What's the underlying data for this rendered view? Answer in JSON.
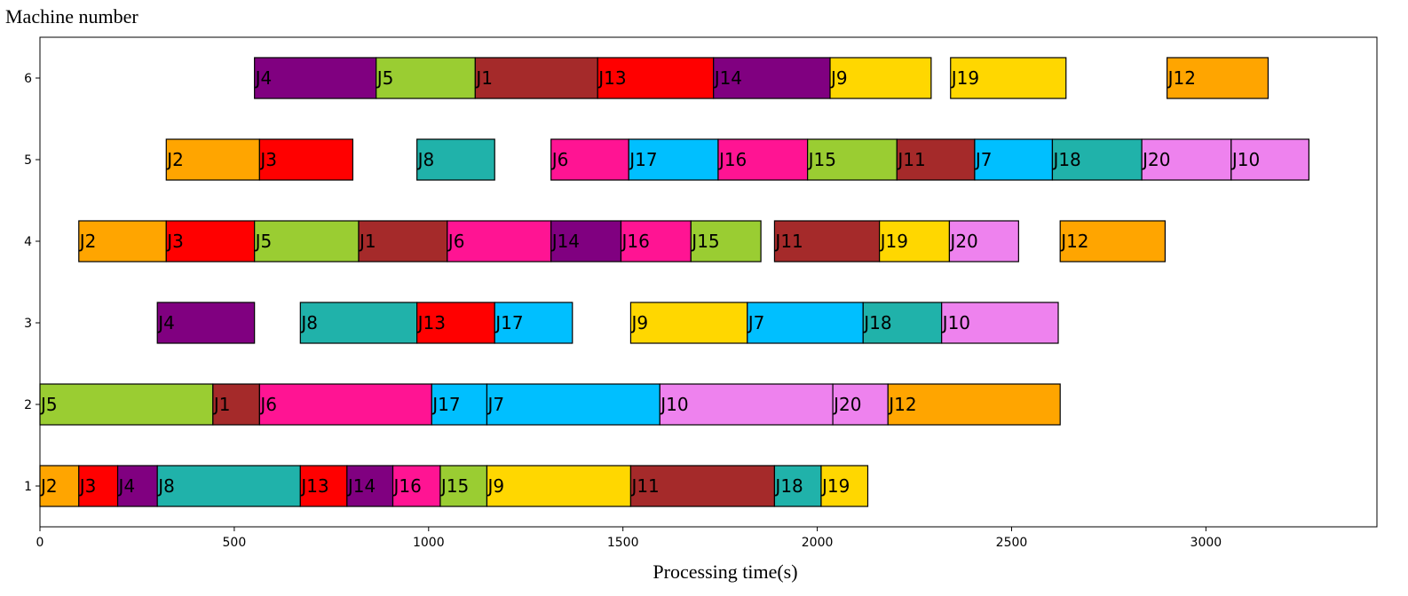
{
  "chart_data": {
    "type": "gantt",
    "ylabel": "Machine number",
    "xlabel": "Processing time(s)",
    "xlim": [
      0,
      3440
    ],
    "ylim": [
      0.5,
      6.5
    ],
    "xticks": [
      0,
      500,
      1000,
      1500,
      2000,
      2500,
      3000
    ],
    "yticks": [
      1,
      2,
      3,
      4,
      5,
      6
    ],
    "grid": false,
    "job_colors": {
      "J1": "#A52A2A",
      "J2": "#FFA500",
      "J3": "#FF0000",
      "J4": "#800080",
      "J5": "#9ACD32",
      "J6": "#FF1493",
      "J7": "#00BFFF",
      "J8": "#20B2AA",
      "J9": "#FFD700",
      "J10": "#EE82EE",
      "J11": "#A52A2A",
      "J12": "#FFA500",
      "J13": "#FF0000",
      "J14": "#800080",
      "J15": "#9ACD32",
      "J16": "#FF1493",
      "J17": "#00BFFF",
      "J18": "#20B2AA",
      "J19": "#FFD700",
      "J20": "#EE82EE"
    },
    "machines": [
      {
        "machine": 1,
        "tasks": [
          {
            "job": "J2",
            "start": 0,
            "end": 100
          },
          {
            "job": "J3",
            "start": 100,
            "end": 200
          },
          {
            "job": "J4",
            "start": 200,
            "end": 302
          },
          {
            "job": "J8",
            "start": 302,
            "end": 670
          },
          {
            "job": "J13",
            "start": 670,
            "end": 790
          },
          {
            "job": "J14",
            "start": 790,
            "end": 908
          },
          {
            "job": "J16",
            "start": 908,
            "end": 1030
          },
          {
            "job": "J15",
            "start": 1030,
            "end": 1150
          },
          {
            "job": "J9",
            "start": 1150,
            "end": 1520
          },
          {
            "job": "J11",
            "start": 1520,
            "end": 1890
          },
          {
            "job": "J18",
            "start": 1890,
            "end": 2010
          },
          {
            "job": "J19",
            "start": 2010,
            "end": 2130
          }
        ]
      },
      {
        "machine": 2,
        "tasks": [
          {
            "job": "J5",
            "start": 0,
            "end": 445
          },
          {
            "job": "J1",
            "start": 445,
            "end": 565
          },
          {
            "job": "J6",
            "start": 565,
            "end": 1008
          },
          {
            "job": "J17",
            "start": 1008,
            "end": 1150
          },
          {
            "job": "J7",
            "start": 1150,
            "end": 1595
          },
          {
            "job": "J10",
            "start": 1595,
            "end": 2040
          },
          {
            "job": "J20",
            "start": 2040,
            "end": 2182
          },
          {
            "job": "J12",
            "start": 2182,
            "end": 2625
          }
        ]
      },
      {
        "machine": 3,
        "tasks": [
          {
            "job": "J4",
            "start": 302,
            "end": 552
          },
          {
            "job": "J8",
            "start": 670,
            "end": 970
          },
          {
            "job": "J13",
            "start": 970,
            "end": 1170
          },
          {
            "job": "J17",
            "start": 1170,
            "end": 1370
          },
          {
            "job": "J9",
            "start": 1520,
            "end": 1820
          },
          {
            "job": "J7",
            "start": 1820,
            "end": 2118
          },
          {
            "job": "J18",
            "start": 2118,
            "end": 2320
          },
          {
            "job": "J10",
            "start": 2320,
            "end": 2620
          }
        ]
      },
      {
        "machine": 4,
        "tasks": [
          {
            "job": "J2",
            "start": 100,
            "end": 325
          },
          {
            "job": "J3",
            "start": 325,
            "end": 552
          },
          {
            "job": "J5",
            "start": 552,
            "end": 820
          },
          {
            "job": "J1",
            "start": 820,
            "end": 1048
          },
          {
            "job": "J6",
            "start": 1048,
            "end": 1315
          },
          {
            "job": "J14",
            "start": 1315,
            "end": 1495
          },
          {
            "job": "J16",
            "start": 1495,
            "end": 1675
          },
          {
            "job": "J15",
            "start": 1675,
            "end": 1855
          },
          {
            "job": "J11",
            "start": 1890,
            "end": 2160
          },
          {
            "job": "J19",
            "start": 2160,
            "end": 2340
          },
          {
            "job": "J20",
            "start": 2340,
            "end": 2518
          },
          {
            "job": "J12",
            "start": 2625,
            "end": 2895
          }
        ]
      },
      {
        "machine": 5,
        "tasks": [
          {
            "job": "J2",
            "start": 325,
            "end": 565
          },
          {
            "job": "J3",
            "start": 565,
            "end": 805
          },
          {
            "job": "J8",
            "start": 970,
            "end": 1170
          },
          {
            "job": "J6",
            "start": 1315,
            "end": 1515
          },
          {
            "job": "J17",
            "start": 1515,
            "end": 1745
          },
          {
            "job": "J16",
            "start": 1745,
            "end": 1975
          },
          {
            "job": "J15",
            "start": 1975,
            "end": 2205
          },
          {
            "job": "J11",
            "start": 2205,
            "end": 2405
          },
          {
            "job": "J7",
            "start": 2405,
            "end": 2605
          },
          {
            "job": "J18",
            "start": 2605,
            "end": 2835
          },
          {
            "job": "J20",
            "start": 2835,
            "end": 3065
          },
          {
            "job": "J10",
            "start": 3065,
            "end": 3265
          }
        ]
      },
      {
        "machine": 6,
        "tasks": [
          {
            "job": "J4",
            "start": 552,
            "end": 865
          },
          {
            "job": "J5",
            "start": 865,
            "end": 1120
          },
          {
            "job": "J1",
            "start": 1120,
            "end": 1435
          },
          {
            "job": "J13",
            "start": 1435,
            "end": 1733
          },
          {
            "job": "J14",
            "start": 1733,
            "end": 2033
          },
          {
            "job": "J9",
            "start": 2033,
            "end": 2293
          },
          {
            "job": "J19",
            "start": 2343,
            "end": 2640
          },
          {
            "job": "J12",
            "start": 2900,
            "end": 3160
          }
        ]
      }
    ]
  }
}
